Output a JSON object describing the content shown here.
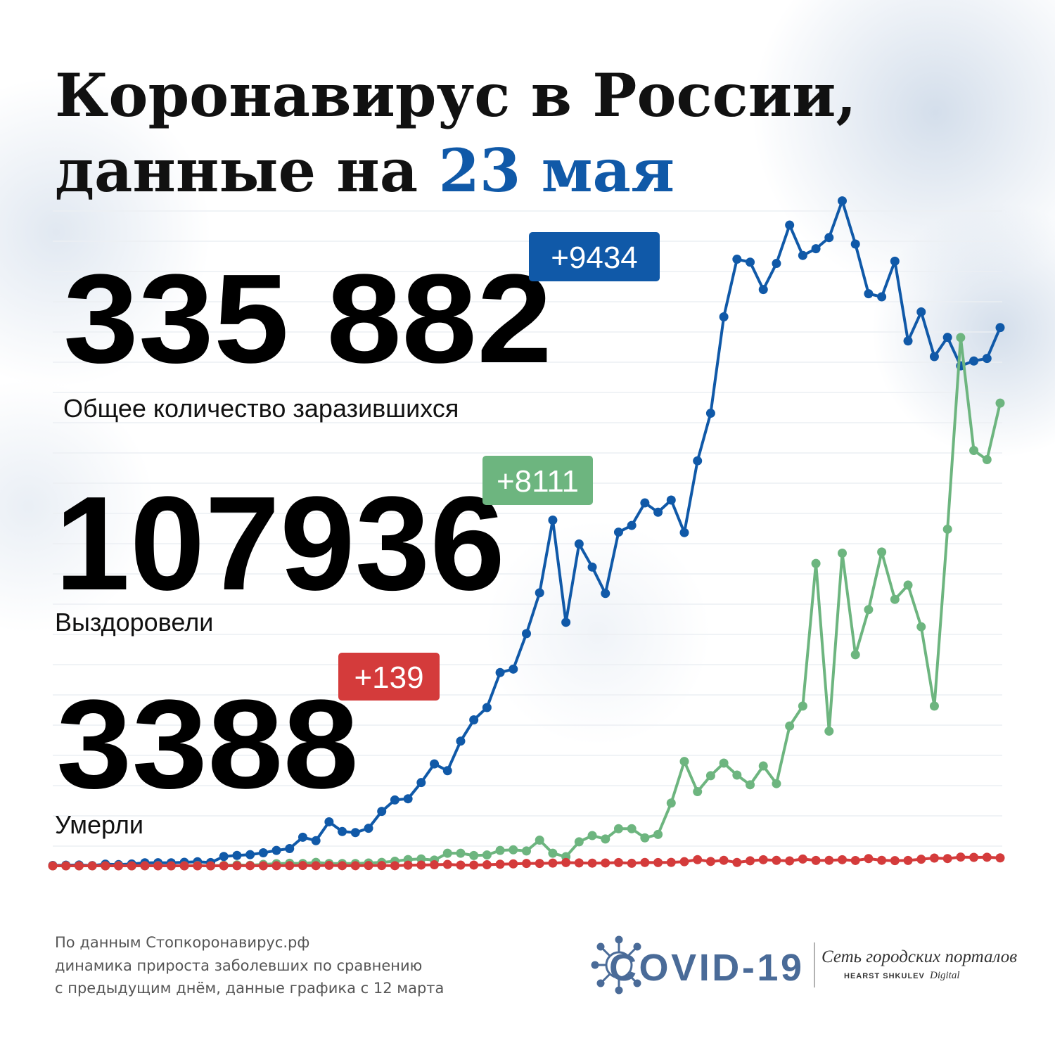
{
  "title_line1": "Коронавирус в России,",
  "title_line2": "данные на",
  "title_date": "23 мая",
  "chart_data": {
    "type": "line",
    "ylim": [
      0,
      11700
    ],
    "series": [
      {
        "name": "Общее количество заразившихся",
        "total": "335 882",
        "delta": "+9434",
        "color": "#1059a8",
        "values": [
          6,
          11,
          14,
          4,
          30,
          21,
          33,
          52,
          54,
          53,
          61,
          71,
          57,
          163,
          182,
          196,
          228,
          270,
          302,
          501,
          440,
          771,
          601,
          582,
          658,
          954,
          1154,
          1175,
          1459,
          1786,
          1667,
          2186,
          2558,
          2774,
          3388,
          3448,
          4070,
          4785,
          6060,
          4268,
          5642,
          5236,
          4774,
          5849,
          5966,
          6361,
          6198,
          6411,
          5841,
          7099,
          7933,
          9623,
          10633,
          10581,
          10102,
          10559,
          11231,
          10699,
          10817,
          11012,
          11656,
          10899,
          10028,
          9974,
          10598,
          9200,
          9709,
          8926,
          9263,
          8764,
          8849,
          8894,
          9434
        ]
      },
      {
        "name": "Выздоровели",
        "total": "107936",
        "delta": "+8111",
        "color": "#6db57f",
        "values": [
          0,
          0,
          0,
          0,
          0,
          3,
          0,
          1,
          3,
          0,
          1,
          5,
          0,
          8,
          16,
          9,
          24,
          37,
          45,
          40,
          60,
          40,
          40,
          40,
          50,
          60,
          80,
          110,
          120,
          100,
          220,
          220,
          180,
          190,
          270,
          280,
          260,
          450,
          220,
          160,
          420,
          530,
          470,
          650,
          650,
          490,
          550,
          1100,
          1830,
          1300,
          1580,
          1800,
          1590,
          1420,
          1750,
          1440,
          2450,
          2800,
          5300,
          2360,
          5480,
          3700,
          4490,
          5500,
          4670,
          4920,
          4190,
          2800,
          5900,
          9260,
          7280,
          7120,
          8111
        ]
      },
      {
        "name": "Умерли",
        "total": "3388",
        "delta": "+139",
        "color": "#d43b3b",
        "values": [
          0,
          0,
          0,
          0,
          0,
          0,
          0,
          1,
          0,
          0,
          0,
          0,
          0,
          0,
          1,
          2,
          0,
          1,
          3,
          4,
          2,
          8,
          2,
          2,
          4,
          4,
          2,
          11,
          13,
          18,
          24,
          12,
          13,
          18,
          28,
          34,
          41,
          42,
          48,
          57,
          51,
          47,
          50,
          57,
          44,
          58,
          57,
          60,
          72,
          108,
          76,
          96,
          58,
          88,
          107,
          95,
          86,
          119,
          94,
          96,
          107,
          93,
          126,
          96,
          91,
          94,
          115,
          135,
          127,
          153,
          148,
          150,
          139
        ]
      }
    ]
  },
  "footer": [
    "По данным Стопкоронавирус.рф",
    "динамика прироста заболевших по сравнению",
    "с предыдущим днём, данные графика с 12 марта"
  ],
  "logo": {
    "name": "COVID-19",
    "network": "Сеть городских порталов",
    "brand": "HEARST SHKULEV",
    "brand_suffix": "Digital"
  }
}
